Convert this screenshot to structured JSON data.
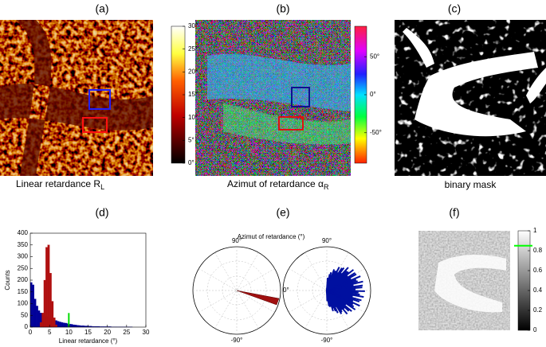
{
  "panels": {
    "a": {
      "label": "(a)",
      "caption": "Linear retardance R",
      "caption_sub": "L",
      "colorbar": {
        "lim": [
          0,
          30
        ],
        "ticks": [
          {
            "value": 0,
            "label": "0°"
          },
          {
            "value": 5,
            "label": "5°"
          },
          {
            "value": 10,
            "label": "10°"
          },
          {
            "value": 15,
            "label": "15°"
          },
          {
            "value": 20,
            "label": "20°"
          },
          {
            "value": 25,
            "label": "25°"
          },
          {
            "value": 30,
            "label": "30°"
          }
        ]
      }
    },
    "b": {
      "label": "(b)",
      "caption": "Azimut of retardance α",
      "caption_sub": "R",
      "colorbar": {
        "lim": [
          -90,
          90
        ],
        "ticks": [
          {
            "value": 50,
            "label": "50°"
          },
          {
            "value": 0,
            "label": "0°"
          },
          {
            "value": -50,
            "label": "-50°"
          }
        ]
      }
    },
    "c": {
      "label": "(c)",
      "caption": "binary mask"
    },
    "d": {
      "label": "(d)"
    },
    "e": {
      "label": "(e)",
      "title": "Azimut of retardance (°)",
      "left": {
        "top": "90°",
        "bottom": "-90°",
        "right": "0°"
      },
      "right": {
        "top": "90°",
        "bottom": "-90°"
      }
    },
    "f": {
      "label": "(f)",
      "colorbar": {
        "lim": [
          0,
          1
        ],
        "ticks": [
          0,
          0.2,
          0.4,
          0.6,
          0.8,
          1
        ],
        "marker": 0.85,
        "marker_color": "#00ff00"
      }
    }
  },
  "chart_data": {
    "type": "histogram",
    "xlabel": "Linear retardance (°)",
    "ylabel": "Counts",
    "bins": [
      0,
      0.5,
      1,
      1.5,
      2,
      2.5,
      3,
      3.5,
      4,
      4.5,
      5,
      5.5,
      6,
      6.5,
      7,
      7.5,
      8,
      8.5,
      9,
      9.5,
      10,
      10.5,
      11,
      11.5,
      12,
      12.5,
      13,
      13.5,
      14,
      14.5,
      15,
      15.5,
      16,
      16.5,
      17,
      17.5,
      18,
      18.5,
      19,
      19.5,
      20,
      20.5,
      21,
      21.5,
      22,
      22.5,
      23,
      23.5,
      24,
      24.5,
      25,
      25.5,
      26,
      26.5,
      27,
      27.5,
      28,
      28.5,
      29,
      29.5,
      30
    ],
    "series": [
      {
        "color": "#000099",
        "values": [
          190,
          180,
          120,
          90,
          70,
          60,
          50,
          45,
          45,
          40,
          38,
          35,
          30,
          28,
          25,
          22,
          20,
          18,
          17,
          15,
          13,
          12,
          10,
          9,
          8,
          7,
          6,
          6,
          5,
          5,
          4,
          4,
          3,
          3,
          3,
          3,
          2,
          2,
          2,
          2,
          2,
          2,
          1,
          1,
          1,
          1,
          1,
          1,
          1,
          1,
          1,
          1,
          1,
          0,
          0,
          0,
          0,
          0,
          0,
          0
        ]
      },
      {
        "color": "#b01010",
        "values": [
          0,
          0,
          0,
          0,
          0,
          20,
          60,
          200,
          340,
          350,
          230,
          110,
          40,
          10,
          0,
          0,
          0,
          0,
          0,
          0,
          0,
          0,
          0,
          0,
          0,
          0,
          0,
          0,
          0,
          0,
          0,
          0,
          0,
          0,
          0,
          0,
          0,
          0,
          0,
          0,
          0,
          0,
          0,
          0,
          0,
          0,
          0,
          0,
          0,
          0,
          0,
          0,
          0,
          0,
          0,
          0,
          0,
          0,
          0,
          0
        ]
      }
    ],
    "threshold": 10,
    "threshold_height": 60,
    "threshold_color": "#00dd00",
    "xlim": [
      0,
      30
    ],
    "ylim": [
      0,
      400
    ],
    "xticks": [
      0,
      5,
      10,
      15,
      20,
      25,
      30
    ],
    "yticks": [
      0,
      50,
      100,
      150,
      200,
      250,
      300,
      350,
      400
    ]
  }
}
